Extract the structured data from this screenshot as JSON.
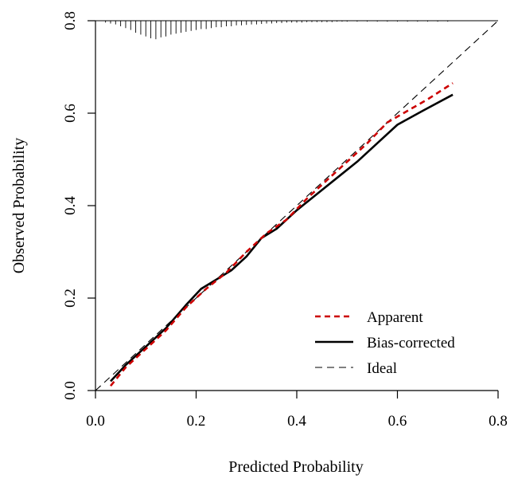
{
  "chart_data": {
    "type": "line",
    "xlabel": "Predicted Probability",
    "ylabel": "Observed Probability",
    "xlim": [
      0,
      0.8
    ],
    "ylim": [
      0,
      0.8
    ],
    "x_ticks": [
      "0.0",
      "0.2",
      "0.4",
      "0.6",
      "0.8"
    ],
    "y_ticks": [
      "0.0",
      "0.2",
      "0.4",
      "0.6",
      "0.8"
    ],
    "x_tick_values": [
      0,
      0.2,
      0.4,
      0.6,
      0.8
    ],
    "y_tick_values": [
      0,
      0.2,
      0.4,
      0.6,
      0.8
    ],
    "grid": false,
    "legend_position": "bottom-right",
    "series": [
      {
        "name": "Apparent",
        "color": "#cc0000",
        "style": "dashed",
        "x": [
          0.03,
          0.06,
          0.1,
          0.14,
          0.18,
          0.22,
          0.26,
          0.3,
          0.34,
          0.38,
          0.42,
          0.46,
          0.5,
          0.54,
          0.58,
          0.62,
          0.66,
          0.71
        ],
        "y": [
          0.01,
          0.05,
          0.09,
          0.13,
          0.18,
          0.22,
          0.255,
          0.3,
          0.34,
          0.37,
          0.415,
          0.455,
          0.495,
          0.535,
          0.58,
          0.605,
          0.63,
          0.665
        ]
      },
      {
        "name": "Bias-corrected",
        "color": "#000000",
        "style": "solid",
        "x": [
          0.03,
          0.06,
          0.1,
          0.14,
          0.18,
          0.21,
          0.24,
          0.27,
          0.3,
          0.33,
          0.36,
          0.4,
          0.44,
          0.48,
          0.52,
          0.56,
          0.6,
          0.65,
          0.71
        ],
        "y": [
          0.02,
          0.055,
          0.095,
          0.135,
          0.185,
          0.22,
          0.24,
          0.26,
          0.29,
          0.33,
          0.35,
          0.39,
          0.425,
          0.46,
          0.495,
          0.535,
          0.575,
          0.605,
          0.64
        ]
      },
      {
        "name": "Ideal",
        "color": "#000000",
        "style": "longdash",
        "x": [
          0,
          0.8
        ],
        "y": [
          0,
          0.8
        ]
      }
    ],
    "rug_top": {
      "x": [
        0.02,
        0.03,
        0.04,
        0.05,
        0.06,
        0.07,
        0.08,
        0.09,
        0.1,
        0.11,
        0.12,
        0.13,
        0.14,
        0.15,
        0.16,
        0.17,
        0.18,
        0.19,
        0.2,
        0.21,
        0.22,
        0.23,
        0.24,
        0.25,
        0.26,
        0.27,
        0.28,
        0.29,
        0.3,
        0.31,
        0.32,
        0.33,
        0.34,
        0.35,
        0.36,
        0.37,
        0.38,
        0.39,
        0.4,
        0.41,
        0.42,
        0.43,
        0.44,
        0.45,
        0.46,
        0.47,
        0.48,
        0.49,
        0.5,
        0.52,
        0.54,
        0.56,
        0.58,
        0.6,
        0.62,
        0.64,
        0.66,
        0.68,
        0.7
      ],
      "h": [
        0.004,
        0.006,
        0.008,
        0.012,
        0.016,
        0.02,
        0.026,
        0.03,
        0.034,
        0.038,
        0.04,
        0.036,
        0.034,
        0.03,
        0.028,
        0.026,
        0.024,
        0.022,
        0.02,
        0.018,
        0.018,
        0.016,
        0.014,
        0.014,
        0.012,
        0.012,
        0.01,
        0.01,
        0.009,
        0.008,
        0.008,
        0.007,
        0.006,
        0.006,
        0.005,
        0.005,
        0.004,
        0.004,
        0.004,
        0.004,
        0.003,
        0.003,
        0.003,
        0.003,
        0.003,
        0.003,
        0.002,
        0.002,
        0.002,
        0.002,
        0.002,
        0.002,
        0.002,
        0.002,
        0.002,
        0.002,
        0.002,
        0.002,
        0.002
      ]
    }
  }
}
